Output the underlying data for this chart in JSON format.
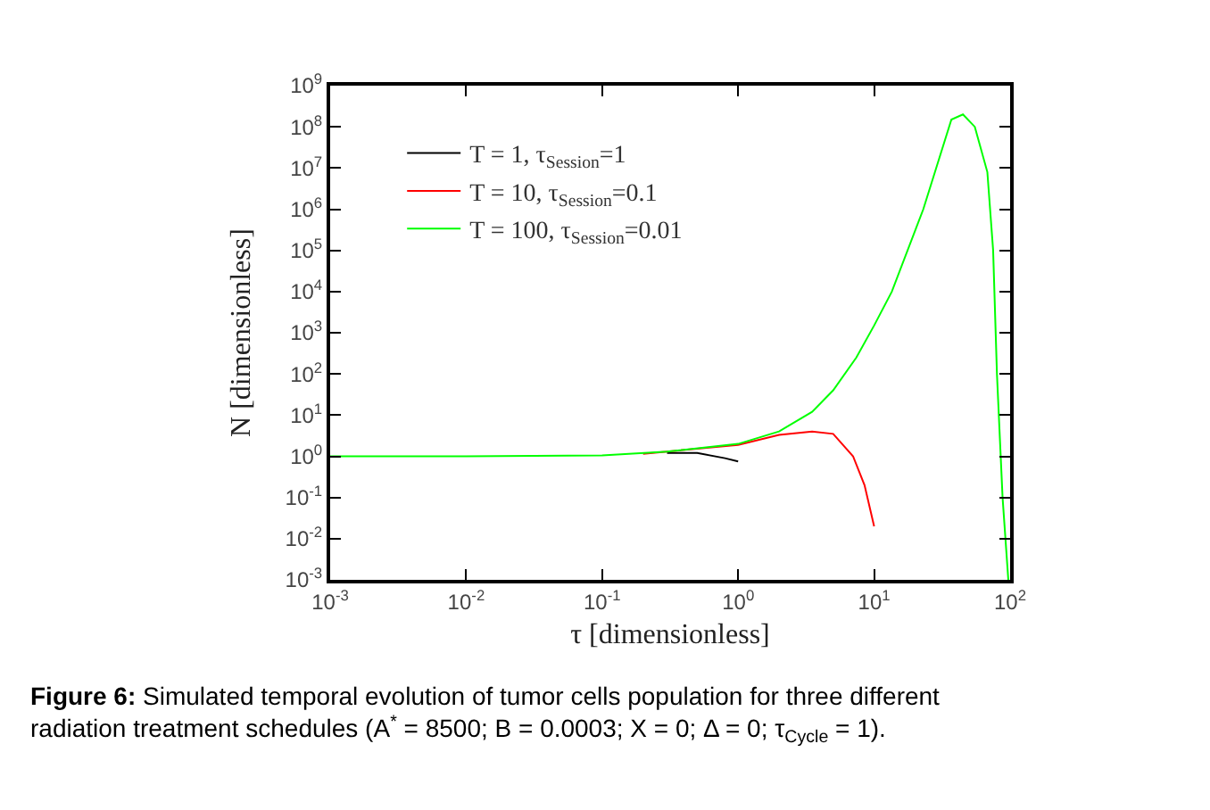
{
  "chart_data": {
    "type": "line",
    "log": "xy",
    "xlabel": "τ [dimensionless]",
    "ylabel": "N [dimensionless]",
    "xlim": [
      0.001,
      100
    ],
    "ylim": [
      0.001,
      1000000000
    ],
    "xticks": [
      {
        "value": 0.001,
        "label": "10$^{-3}$"
      },
      {
        "value": 0.01,
        "label": "10$^{-2}$"
      },
      {
        "value": 0.1,
        "label": "10$^{-1}$"
      },
      {
        "value": 1,
        "label": "10$^{0}$"
      },
      {
        "value": 10,
        "label": "10$^{1}$"
      },
      {
        "value": 100,
        "label": "10$^{2}$"
      }
    ],
    "yticks": [
      {
        "value": 0.001,
        "label": "10$^{-3}$"
      },
      {
        "value": 0.01,
        "label": "10$^{-2}$"
      },
      {
        "value": 0.1,
        "label": "10$^{-1}$"
      },
      {
        "value": 1,
        "label": "10$^{0}$"
      },
      {
        "value": 10,
        "label": "10$^{1}$"
      },
      {
        "value": 100,
        "label": "10$^{2}$"
      },
      {
        "value": 1000,
        "label": "10$^{3}$"
      },
      {
        "value": 10000,
        "label": "10$^{4}$"
      },
      {
        "value": 100000,
        "label": "10$^{5}$"
      },
      {
        "value": 1000000,
        "label": "10$^{6}$"
      },
      {
        "value": 10000000,
        "label": "10$^{7}$"
      },
      {
        "value": 100000000,
        "label": "10$^{8}$"
      },
      {
        "value": 1000000000,
        "label": "10$^{9}$"
      }
    ],
    "legend": "top left",
    "marker": "none",
    "line_style": "solid",
    "series": [
      {
        "name": "T = 1, τ$_{Session}$=1",
        "color": "#000000",
        "x": [
          0.3,
          0.5,
          0.8,
          1
        ],
        "values": [
          1.2,
          1.2,
          0.9,
          0.75
        ]
      },
      {
        "name": "T = 10, τ$_{Session}$=0.1",
        "color": "#ff0000",
        "x": [
          0.2,
          0.3,
          1,
          2,
          3.5,
          5,
          7,
          8.5,
          10
        ],
        "values": [
          1.15,
          1.3,
          1.9,
          3.3,
          4,
          3.5,
          1,
          0.2,
          0.02
        ]
      },
      {
        "name": "T = 100, τ$_{Session}$=0.01",
        "color": "#00ff00",
        "x": [
          0.001,
          0.01,
          0.1,
          0.3,
          1,
          2,
          3.5,
          5,
          7.4,
          10,
          13.5,
          23,
          37,
          45,
          55,
          68,
          75,
          80,
          88,
          97
        ],
        "values": [
          1,
          1,
          1.05,
          1.3,
          2,
          4,
          12,
          40,
          250,
          1500,
          10000,
          1000000,
          150000000,
          200000000,
          100000000,
          8000000,
          100000,
          100,
          0.1,
          0.001
        ]
      }
    ],
    "annotations": [
      "**Figure 6:** Simulated temporal evolution of tumor cells population for three different radiation treatment schedules (A$^{*}$ = 8500; B = 0.0003; X = 0; Δ = 0; τ$_{Cycle}$ = 1)."
    ]
  }
}
